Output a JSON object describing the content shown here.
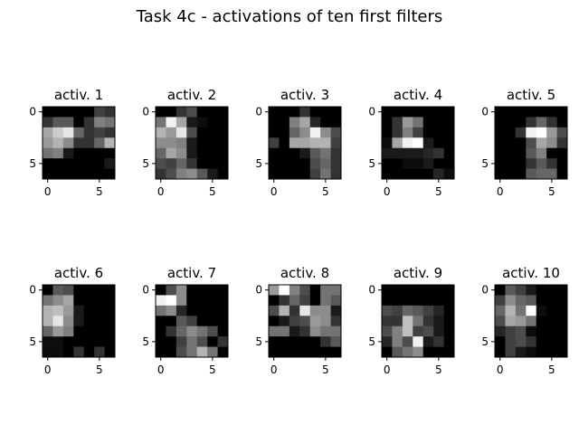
{
  "figure": {
    "title": "Task 4c - activations of ten first filters"
  },
  "chart_data": {
    "type": "heatmap",
    "colormap": "gray",
    "value_range": [
      0,
      1
    ],
    "grid": false,
    "x_ticks": [
      0,
      5
    ],
    "y_ticks": [
      0,
      5
    ],
    "panels": [
      {
        "title": "activ. 1",
        "values": [
          [
            0.0,
            0.0,
            0.0,
            0.0,
            0.0,
            0.25,
            0.2
          ],
          [
            0.2,
            0.35,
            0.35,
            0.0,
            0.2,
            0.5,
            0.45
          ],
          [
            0.65,
            0.8,
            0.9,
            0.4,
            0.2,
            0.25,
            0.2
          ],
          [
            0.6,
            0.7,
            0.55,
            0.2,
            0.2,
            0.4,
            0.7
          ],
          [
            0.45,
            0.5,
            0.1,
            0.0,
            0.0,
            0.0,
            0.0
          ],
          [
            0.0,
            0.0,
            0.0,
            0.0,
            0.0,
            0.0,
            0.1
          ],
          [
            0.0,
            0.0,
            0.0,
            0.0,
            0.0,
            0.0,
            0.0
          ]
        ]
      },
      {
        "title": "activ. 2",
        "values": [
          [
            0.0,
            0.0,
            0.2,
            0.3,
            0.0,
            0.0,
            0.0
          ],
          [
            0.45,
            0.95,
            0.65,
            0.1,
            0.05,
            0.0,
            0.0
          ],
          [
            0.7,
            0.6,
            0.9,
            0.3,
            0.0,
            0.0,
            0.0
          ],
          [
            0.55,
            0.55,
            0.5,
            0.1,
            0.0,
            0.0,
            0.0
          ],
          [
            0.4,
            0.65,
            0.55,
            0.1,
            0.0,
            0.0,
            0.0
          ],
          [
            0.3,
            0.25,
            0.4,
            0.2,
            0.0,
            0.0,
            0.0
          ],
          [
            0.2,
            0.3,
            0.5,
            0.55,
            0.35,
            0.1,
            0.0
          ]
        ]
      },
      {
        "title": "activ. 3",
        "values": [
          [
            0.0,
            0.0,
            0.0,
            0.2,
            0.0,
            0.0,
            0.0
          ],
          [
            0.0,
            0.0,
            0.5,
            0.65,
            0.15,
            0.0,
            0.0
          ],
          [
            0.0,
            0.0,
            0.4,
            0.55,
            0.95,
            0.55,
            0.3
          ],
          [
            0.25,
            0.0,
            0.65,
            0.65,
            0.7,
            0.7,
            0.25
          ],
          [
            0.0,
            0.0,
            0.0,
            0.1,
            0.35,
            0.45,
            0.2
          ],
          [
            0.0,
            0.0,
            0.0,
            0.0,
            0.3,
            0.4,
            0.2
          ],
          [
            0.0,
            0.0,
            0.0,
            0.0,
            0.25,
            0.45,
            0.2
          ]
        ]
      },
      {
        "title": "activ. 4",
        "values": [
          [
            0.0,
            0.0,
            0.0,
            0.0,
            0.0,
            0.0,
            0.0
          ],
          [
            0.0,
            0.2,
            0.6,
            0.45,
            0.0,
            0.0,
            0.0
          ],
          [
            0.0,
            0.2,
            0.5,
            0.25,
            0.0,
            0.0,
            0.0
          ],
          [
            0.05,
            0.65,
            0.95,
            1.0,
            0.1,
            0.0,
            0.0
          ],
          [
            0.1,
            0.1,
            0.1,
            0.1,
            0.15,
            0.2,
            0.0
          ],
          [
            0.0,
            0.0,
            0.05,
            0.05,
            0.1,
            0.0,
            0.0
          ],
          [
            0.0,
            0.0,
            0.0,
            0.0,
            0.0,
            0.15,
            0.05
          ]
        ]
      },
      {
        "title": "activ. 5",
        "values": [
          [
            0.0,
            0.0,
            0.0,
            0.0,
            0.0,
            0.0,
            0.0
          ],
          [
            0.0,
            0.0,
            0.0,
            0.2,
            0.4,
            0.2,
            0.0
          ],
          [
            0.0,
            0.0,
            0.2,
            0.95,
            1.0,
            0.6,
            0.3
          ],
          [
            0.0,
            0.0,
            0.0,
            0.3,
            0.65,
            0.55,
            0.2
          ],
          [
            0.0,
            0.0,
            0.0,
            0.35,
            0.5,
            0.0,
            0.0
          ],
          [
            0.0,
            0.0,
            0.0,
            0.2,
            0.35,
            0.2,
            0.0
          ],
          [
            0.0,
            0.0,
            0.0,
            0.35,
            0.4,
            0.4,
            0.0
          ]
        ]
      },
      {
        "title": "activ. 6",
        "values": [
          [
            0.0,
            0.35,
            0.3,
            0.0,
            0.0,
            0.0,
            0.0
          ],
          [
            0.45,
            0.55,
            0.65,
            0.0,
            0.0,
            0.0,
            0.0
          ],
          [
            0.7,
            0.75,
            0.6,
            0.1,
            0.0,
            0.0,
            0.0
          ],
          [
            0.7,
            0.9,
            0.55,
            0.1,
            0.0,
            0.0,
            0.0
          ],
          [
            0.4,
            0.6,
            0.5,
            0.0,
            0.0,
            0.0,
            0.0
          ],
          [
            0.05,
            0.05,
            0.0,
            0.0,
            0.0,
            0.0,
            0.0
          ],
          [
            0.05,
            0.05,
            0.0,
            0.2,
            0.0,
            0.2,
            0.0
          ]
        ]
      },
      {
        "title": "activ. 7",
        "values": [
          [
            0.0,
            0.3,
            0.55,
            0.0,
            0.0,
            0.0,
            0.0
          ],
          [
            0.95,
            1.0,
            0.55,
            0.0,
            0.0,
            0.0,
            0.0
          ],
          [
            0.45,
            0.55,
            0.15,
            0.0,
            0.0,
            0.0,
            0.0
          ],
          [
            0.0,
            0.0,
            0.35,
            0.25,
            0.0,
            0.0,
            0.0
          ],
          [
            0.0,
            0.2,
            0.4,
            0.55,
            0.45,
            0.3,
            0.0
          ],
          [
            0.0,
            0.0,
            0.25,
            0.45,
            0.3,
            0.0,
            0.2
          ],
          [
            0.0,
            0.0,
            0.3,
            0.45,
            0.7,
            0.45,
            0.0
          ]
        ]
      },
      {
        "title": "activ. 8",
        "values": [
          [
            0.6,
            1.0,
            0.5,
            0.3,
            0.0,
            0.45,
            0.45
          ],
          [
            0.0,
            0.2,
            0.4,
            0.25,
            0.0,
            0.45,
            0.35
          ],
          [
            0.3,
            0.7,
            0.2,
            0.9,
            0.55,
            0.55,
            0.1
          ],
          [
            0.0,
            0.1,
            0.25,
            0.3,
            0.6,
            0.55,
            0.2
          ],
          [
            0.45,
            0.45,
            0.1,
            0.2,
            0.55,
            0.45,
            0.45
          ],
          [
            0.0,
            0.0,
            0.0,
            0.0,
            0.0,
            0.2,
            0.35
          ],
          [
            0.0,
            0.0,
            0.0,
            0.0,
            0.0,
            0.0,
            0.0
          ]
        ]
      },
      {
        "title": "activ. 9",
        "values": [
          [
            0.0,
            0.0,
            0.0,
            0.0,
            0.0,
            0.0,
            0.0
          ],
          [
            0.0,
            0.0,
            0.0,
            0.0,
            0.0,
            0.0,
            0.0
          ],
          [
            0.3,
            0.25,
            0.4,
            0.35,
            0.25,
            0.15,
            0.0
          ],
          [
            0.2,
            0.2,
            0.75,
            0.45,
            0.2,
            0.1,
            0.0
          ],
          [
            0.3,
            0.5,
            0.75,
            0.25,
            0.3,
            0.1,
            0.0
          ],
          [
            0.15,
            0.5,
            0.3,
            0.95,
            0.1,
            0.2,
            0.0
          ],
          [
            0.0,
            0.35,
            0.45,
            0.55,
            0.0,
            0.0,
            0.0
          ]
        ]
      },
      {
        "title": "activ. 10",
        "values": [
          [
            0.0,
            0.35,
            0.25,
            0.1,
            0.0,
            0.0,
            0.0
          ],
          [
            0.25,
            0.55,
            0.4,
            0.35,
            0.0,
            0.0,
            0.0
          ],
          [
            0.4,
            0.7,
            0.45,
            1.0,
            0.05,
            0.0,
            0.0
          ],
          [
            0.3,
            0.65,
            0.6,
            0.45,
            0.0,
            0.0,
            0.0
          ],
          [
            0.15,
            0.25,
            0.3,
            0.05,
            0.0,
            0.0,
            0.0
          ],
          [
            0.0,
            0.25,
            0.3,
            0.2,
            0.0,
            0.0,
            0.0
          ],
          [
            0.0,
            0.25,
            0.1,
            0.05,
            0.0,
            0.0,
            0.0
          ]
        ]
      }
    ]
  }
}
